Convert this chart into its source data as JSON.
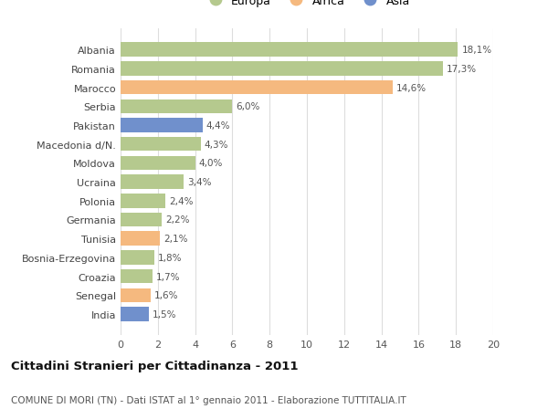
{
  "categories": [
    "India",
    "Senegal",
    "Croazia",
    "Bosnia-Erzegovina",
    "Tunisia",
    "Germania",
    "Polonia",
    "Ucraina",
    "Moldova",
    "Macedonia d/N.",
    "Pakistan",
    "Serbia",
    "Marocco",
    "Romania",
    "Albania"
  ],
  "values": [
    1.5,
    1.6,
    1.7,
    1.8,
    2.1,
    2.2,
    2.4,
    3.4,
    4.0,
    4.3,
    4.4,
    6.0,
    14.6,
    17.3,
    18.1
  ],
  "labels": [
    "1,5%",
    "1,6%",
    "1,7%",
    "1,8%",
    "2,1%",
    "2,2%",
    "2,4%",
    "3,4%",
    "4,0%",
    "4,3%",
    "4,4%",
    "6,0%",
    "14,6%",
    "17,3%",
    "18,1%"
  ],
  "continents": [
    "Asia",
    "Africa",
    "Europa",
    "Europa",
    "Africa",
    "Europa",
    "Europa",
    "Europa",
    "Europa",
    "Europa",
    "Asia",
    "Europa",
    "Africa",
    "Europa",
    "Europa"
  ],
  "colors": {
    "Europa": "#b5c98e",
    "Africa": "#f5b97f",
    "Asia": "#7090cc"
  },
  "europa_color": "#b5c98e",
  "africa_color": "#f5b97f",
  "asia_color": "#7090cc",
  "background_color": "#ffffff",
  "grid_color": "#dddddd",
  "title": "Cittadini Stranieri per Cittadinanza - 2011",
  "subtitle": "COMUNE DI MORI (TN) - Dati ISTAT al 1° gennaio 2011 - Elaborazione TUTTITALIA.IT",
  "xlim": [
    0,
    20
  ],
  "xticks": [
    0,
    2,
    4,
    6,
    8,
    10,
    12,
    14,
    16,
    18,
    20
  ],
  "bar_height": 0.75
}
